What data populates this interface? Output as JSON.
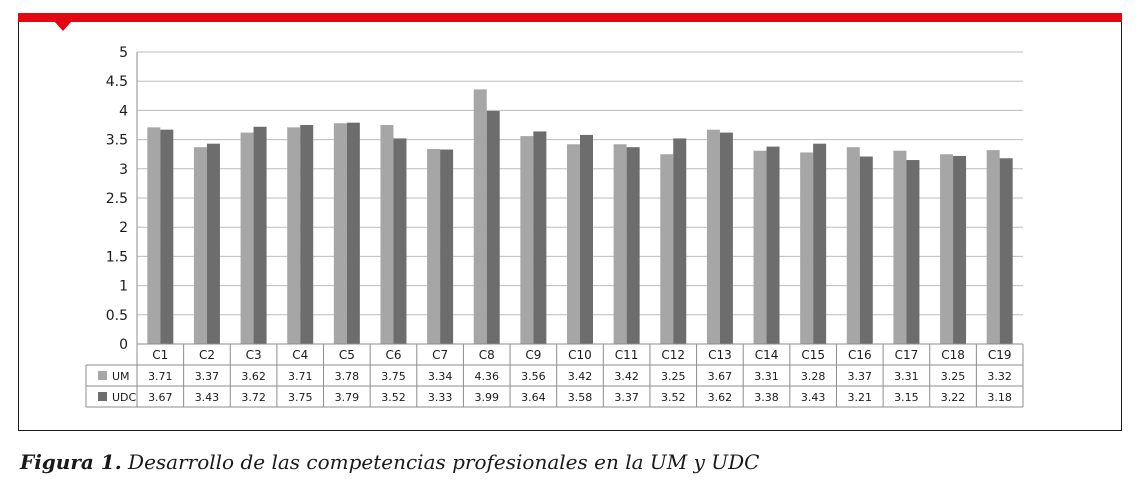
{
  "chart_data": {
    "type": "bar",
    "categories": [
      "C1",
      "C2",
      "C3",
      "C4",
      "C5",
      "C6",
      "C7",
      "C8",
      "C9",
      "C10",
      "C11",
      "C12",
      "C13",
      "C14",
      "C15",
      "C16",
      "C17",
      "C18",
      "C19"
    ],
    "series": [
      {
        "name": "UM",
        "color": "#a6a6a6",
        "values": [
          3.71,
          3.37,
          3.62,
          3.71,
          3.78,
          3.75,
          3.34,
          4.36,
          3.56,
          3.42,
          3.42,
          3.25,
          3.67,
          3.31,
          3.28,
          3.37,
          3.31,
          3.25,
          3.32
        ]
      },
      {
        "name": "UDC",
        "color": "#6d6d6d",
        "values": [
          3.67,
          3.43,
          3.72,
          3.75,
          3.79,
          3.52,
          3.33,
          3.99,
          3.64,
          3.58,
          3.37,
          3.52,
          3.62,
          3.38,
          3.43,
          3.21,
          3.15,
          3.22,
          3.18
        ]
      }
    ],
    "ylim": [
      0,
      5
    ],
    "yticks": [
      "0",
      "0.5",
      "1",
      "1.5",
      "2",
      "2.5",
      "3",
      "3.5",
      "4",
      "4.5",
      "5"
    ],
    "grid": true,
    "legend": "data-table",
    "data_table": true
  },
  "caption": {
    "label": "Figura 1.",
    "text": " Desarrollo de las competencias profesionales en la UM y UDC"
  },
  "colors": {
    "accent": "#e30613"
  }
}
